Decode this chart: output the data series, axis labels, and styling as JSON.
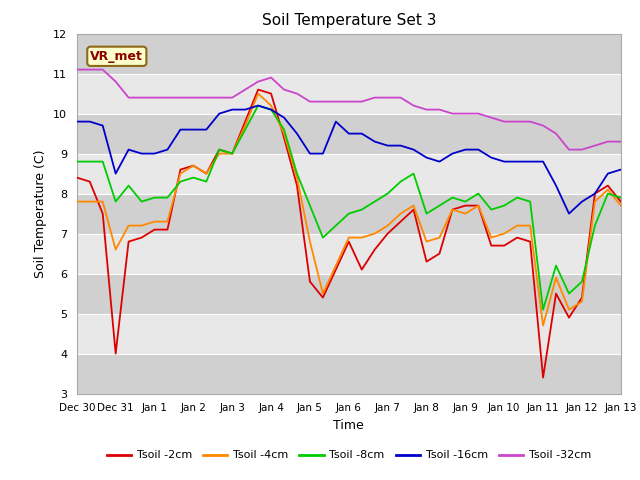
{
  "title": "Soil Temperature Set 3",
  "xlabel": "Time",
  "ylabel": "Soil Temperature (C)",
  "ylim": [
    3.0,
    12.0
  ],
  "yticks": [
    3.0,
    4.0,
    5.0,
    6.0,
    7.0,
    8.0,
    9.0,
    10.0,
    11.0,
    12.0
  ],
  "annotation_text": "VR_met",
  "fig_bg_color": "#ffffff",
  "plot_bg_color": "#e8e8e8",
  "band_color_dark": "#d0d0d0",
  "series": [
    {
      "label": "Tsoil -2cm",
      "color": "#dd0000",
      "linewidth": 1.3,
      "values": [
        8.4,
        8.3,
        7.5,
        4.0,
        6.8,
        6.9,
        7.1,
        7.1,
        8.6,
        8.7,
        8.5,
        9.1,
        9.0,
        9.8,
        10.6,
        10.5,
        9.4,
        8.2,
        5.8,
        5.4,
        6.1,
        6.8,
        6.1,
        6.6,
        7.0,
        7.3,
        7.6,
        6.3,
        6.5,
        7.6,
        7.7,
        7.7,
        6.7,
        6.7,
        6.9,
        6.8,
        3.4,
        5.5,
        4.9,
        5.4,
        8.0,
        8.2,
        7.8
      ]
    },
    {
      "label": "Tsoil -4cm",
      "color": "#ff8800",
      "linewidth": 1.3,
      "values": [
        7.8,
        7.8,
        7.8,
        6.6,
        7.2,
        7.2,
        7.3,
        7.3,
        8.5,
        8.7,
        8.5,
        9.0,
        9.0,
        9.7,
        10.5,
        10.2,
        9.5,
        8.4,
        6.8,
        5.5,
        6.2,
        6.9,
        6.9,
        7.0,
        7.2,
        7.5,
        7.7,
        6.8,
        6.9,
        7.6,
        7.5,
        7.7,
        6.9,
        7.0,
        7.2,
        7.2,
        4.7,
        5.9,
        5.1,
        5.3,
        7.8,
        8.1,
        7.7
      ]
    },
    {
      "label": "Tsoil -8cm",
      "color": "#00cc00",
      "linewidth": 1.3,
      "values": [
        8.8,
        8.8,
        8.8,
        7.8,
        8.2,
        7.8,
        7.9,
        7.9,
        8.3,
        8.4,
        8.3,
        9.1,
        9.0,
        9.6,
        10.2,
        10.1,
        9.6,
        8.5,
        7.7,
        6.9,
        7.2,
        7.5,
        7.6,
        7.8,
        8.0,
        8.3,
        8.5,
        7.5,
        7.7,
        7.9,
        7.8,
        8.0,
        7.6,
        7.7,
        7.9,
        7.8,
        5.1,
        6.2,
        5.5,
        5.8,
        7.2,
        8.0,
        7.9
      ]
    },
    {
      "label": "Tsoil -16cm",
      "color": "#0000cc",
      "linewidth": 1.3,
      "values": [
        9.8,
        9.8,
        9.7,
        8.5,
        9.1,
        9.0,
        9.0,
        9.1,
        9.6,
        9.6,
        9.6,
        10.0,
        10.1,
        10.1,
        10.2,
        10.1,
        9.9,
        9.5,
        9.0,
        9.0,
        9.8,
        9.5,
        9.5,
        9.3,
        9.2,
        9.2,
        9.1,
        8.9,
        8.8,
        9.0,
        9.1,
        9.1,
        8.9,
        8.8,
        8.8,
        8.8,
        8.8,
        8.2,
        7.5,
        7.8,
        8.0,
        8.5,
        8.6
      ]
    },
    {
      "label": "Tsoil -32cm",
      "color": "#cc44cc",
      "linewidth": 1.3,
      "values": [
        11.1,
        11.1,
        11.1,
        10.8,
        10.4,
        10.4,
        10.4,
        10.4,
        10.4,
        10.4,
        10.4,
        10.4,
        10.4,
        10.6,
        10.8,
        10.9,
        10.6,
        10.5,
        10.3,
        10.3,
        10.3,
        10.3,
        10.3,
        10.4,
        10.4,
        10.4,
        10.2,
        10.1,
        10.1,
        10.0,
        10.0,
        10.0,
        9.9,
        9.8,
        9.8,
        9.8,
        9.7,
        9.5,
        9.1,
        9.1,
        9.2,
        9.3,
        9.3
      ]
    }
  ],
  "xtick_labels": [
    "Dec 30",
    "Dec 31",
    "Jan 1",
    "Jan 2",
    "Jan 3",
    "Jan 4",
    "Jan 5",
    "Jan 6",
    "Jan 7",
    "Jan 8",
    "Jan 9",
    "Jan 10",
    "Jan 11",
    "Jan 12",
    "Jan 13"
  ],
  "num_points": 43,
  "start_day": 0,
  "end_day": 14
}
